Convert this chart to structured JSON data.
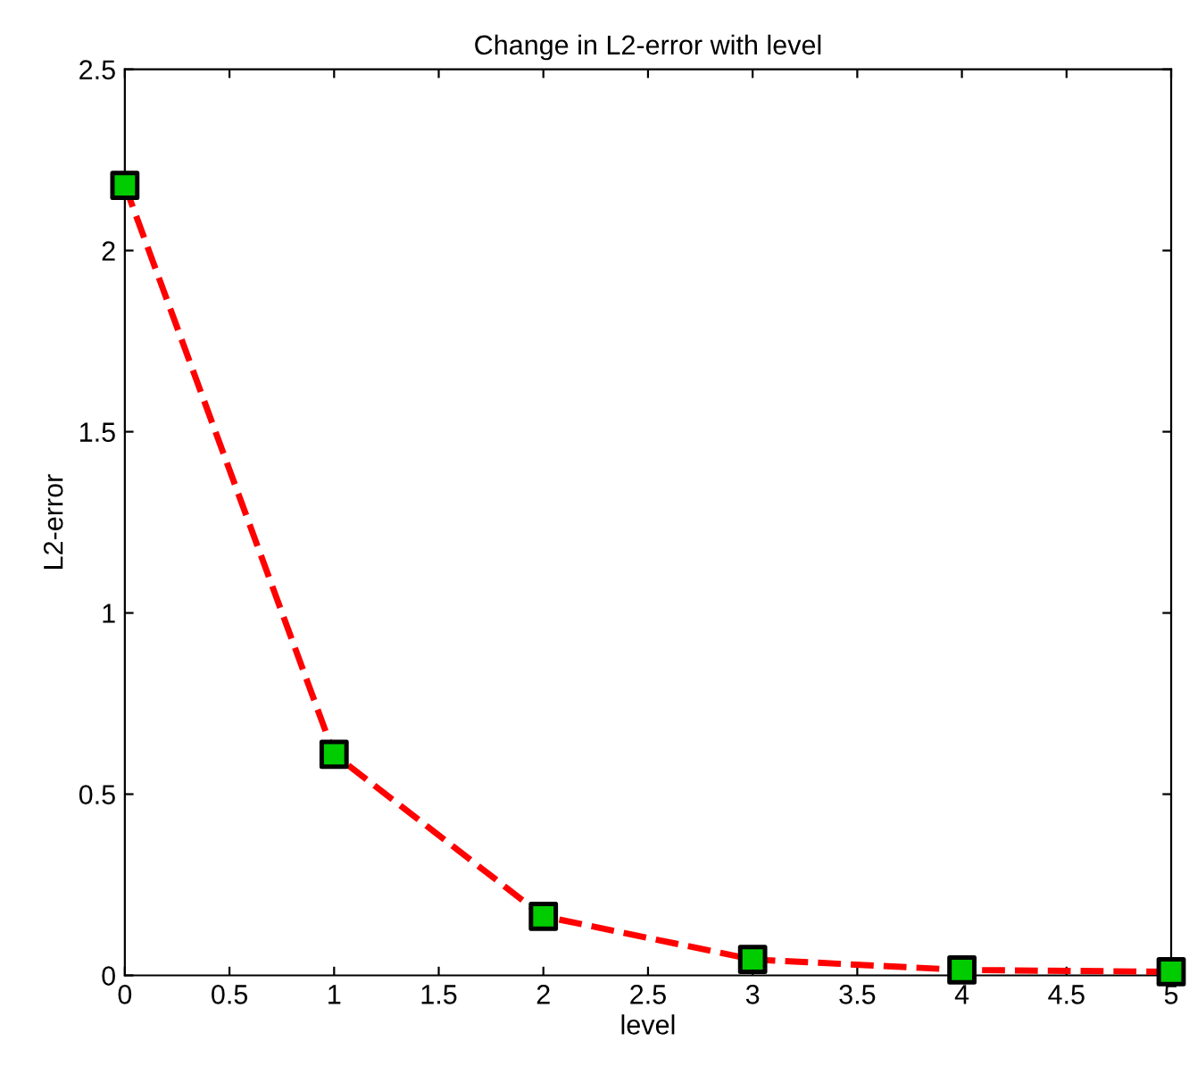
{
  "chart_data": {
    "type": "line",
    "title": "Change in L2-error with level",
    "xlabel": "level",
    "ylabel": "L2-error",
    "x": [
      0,
      1,
      2,
      3,
      4,
      5
    ],
    "series": [
      {
        "color": "#ff0000",
        "colors": [
          "#00cc00",
          "#00cc00",
          "#00cc00",
          "#00cc00",
          "#00cc00",
          "#00cc00"
        ],
        "values": [
          2.18,
          0.61,
          0.163,
          0.044,
          0.015,
          0.01
        ]
      }
    ],
    "marker": "square",
    "line_style": "dashed",
    "grid": false,
    "legend": false,
    "xlim": [
      0,
      5
    ],
    "xticks": [
      0,
      0.5,
      1,
      1.5,
      2,
      2.5,
      3,
      3.5,
      4,
      4.5,
      5
    ],
    "ylim": [
      0,
      2.5
    ],
    "yticks": [
      0,
      0.5,
      1,
      1.5,
      2,
      2.5
    ]
  }
}
